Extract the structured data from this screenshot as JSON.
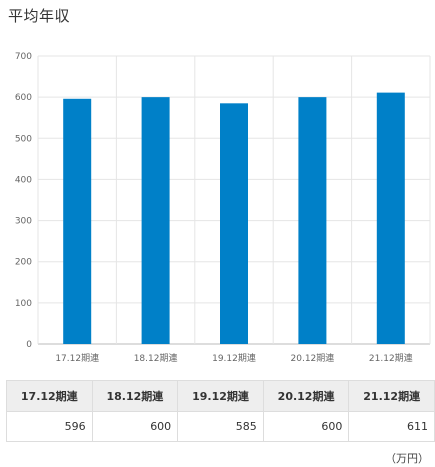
{
  "title": "平均年収",
  "unit": "（万円）",
  "colors": {
    "bar": "#0080c8",
    "grid": "#e5e5e5",
    "axis": "#bbbbbb"
  },
  "chart_data": {
    "type": "bar",
    "categories": [
      "17.12期連",
      "18.12期連",
      "19.12期連",
      "20.12期連",
      "21.12期連"
    ],
    "values": [
      596,
      600,
      585,
      600,
      611
    ],
    "ylim": [
      0,
      700
    ],
    "yticks": [
      0,
      100,
      200,
      300,
      400,
      500,
      600,
      700
    ],
    "grid": true,
    "title": "",
    "xlabel": "",
    "ylabel": ""
  },
  "table": {
    "headers": [
      "17.12期連",
      "18.12期連",
      "19.12期連",
      "20.12期連",
      "21.12期連"
    ],
    "values": [
      "596",
      "600",
      "585",
      "600",
      "611"
    ]
  }
}
